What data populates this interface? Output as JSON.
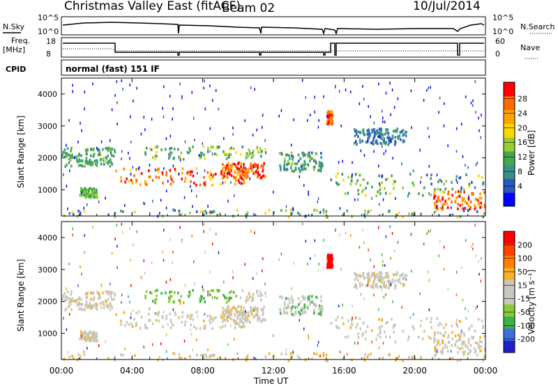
{
  "header": {
    "title": "Christmas Valley East (fitACF)",
    "beam": "Beam 02",
    "date": "10/Jul/2014"
  },
  "side_labels": {
    "nsky": "N.Sky",
    "nsearch": "N.Search",
    "freq": "Freq.",
    "freq_unit": "[MHz]",
    "nave": "Nave",
    "cpid": "CPID",
    "mode": "normal (fast) 151 IF"
  },
  "noise_axis": {
    "top": "10^5",
    "bottom": "10^0",
    "right_top": "10^5",
    "right_bottom": "10^0"
  },
  "freq_axis": {
    "left_top": "18",
    "left_bottom": "8",
    "right_top": "60",
    "right_bottom": "0"
  },
  "colors": {
    "power_scale": [
      "#0000ff",
      "#2a57c4",
      "#3c8f88",
      "#45a84f",
      "#9acd32",
      "#ffd700",
      "#ffa500",
      "#ff6a00",
      "#ff0000"
    ],
    "velocity_scale": [
      "#2020c8",
      "#3d6fe0",
      "#3cb34a",
      "#88cc33",
      "#c8c8c0",
      "#c8c8c0",
      "#f5b325",
      "#ff8000",
      "#ff4000",
      "#ff0000"
    ]
  },
  "chart_data": [
    {
      "type": "heatmap",
      "name": "power",
      "title": "",
      "xlabel": "",
      "ylabel": "Slant Range [km]",
      "xlim": [
        0,
        24
      ],
      "ylim": [
        180,
        4500
      ],
      "y_ticks": [
        "1000",
        "2000",
        "3000",
        "4000"
      ],
      "colorbar": {
        "label": "Power [dB]",
        "ticks": [
          "4",
          "8",
          "12",
          "16",
          "20",
          "24",
          "28"
        ],
        "range": [
          0,
          30
        ]
      }
    },
    {
      "type": "heatmap",
      "name": "velocity",
      "title": "",
      "xlabel": "Time UT",
      "ylabel": "Slant Range [km]",
      "xlim": [
        0,
        24
      ],
      "ylim": [
        180,
        4500
      ],
      "x_ticks": [
        "00:00",
        "04:00",
        "08:00",
        "12:00",
        "16:00",
        "20:00",
        "00:00"
      ],
      "y_ticks": [
        "1000",
        "2000",
        "3000",
        "4000"
      ],
      "colorbar": {
        "label": "Velocity [m s⁻¹]",
        "ticks": [
          "200",
          "100",
          "50",
          "15",
          "-15",
          "-50",
          "-100",
          "-200"
        ]
      }
    }
  ]
}
